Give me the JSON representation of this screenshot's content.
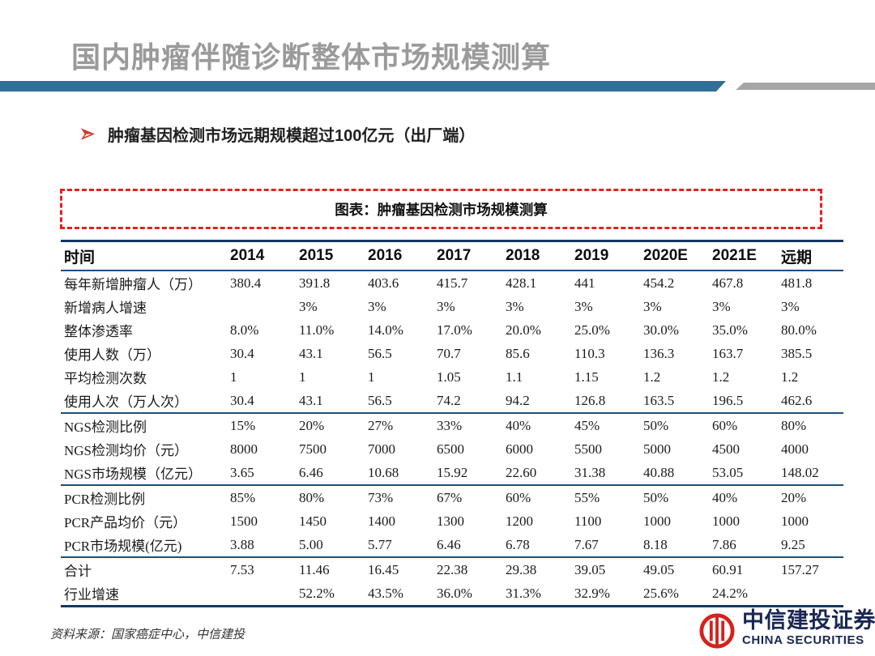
{
  "page": {
    "title": "国内肿瘤伴随诊断整体市场规模测算",
    "bullet": "肿瘤基因检测市场远期规模超过100亿元（出厂端）",
    "source": "资料来源：国家癌症中心，中信建投"
  },
  "logo": {
    "name_cn": "中信建投证券",
    "name_en": "CHINA SECURITIES"
  },
  "colors": {
    "title_gray": "#9a9a9a",
    "bar_blue": "#2f7097",
    "bar_gray": "#a6a6a6",
    "accent_red": "#cf3a28",
    "dash_red": "#e02420",
    "navy": "#17375e",
    "line_blue": "#1f4e79",
    "logo_red": "#d3231c",
    "logo_navy": "#182753"
  },
  "chart_data": {
    "type": "table",
    "title": "图表：肿瘤基因检测市场规模测算",
    "columns": [
      "时间",
      "2014",
      "2015",
      "2016",
      "2017",
      "2018",
      "2019",
      "2020E",
      "2021E",
      "远期"
    ],
    "rows": [
      {
        "label": "每年新增肿瘤人（万）",
        "values": [
          "380.4",
          "391.8",
          "403.6",
          "415.7",
          "428.1",
          "441",
          "454.2",
          "467.8",
          "481.8"
        ],
        "section_end": false
      },
      {
        "label": "新增病人增速",
        "values": [
          "",
          "3%",
          "3%",
          "3%",
          "3%",
          "3%",
          "3%",
          "3%",
          "3%"
        ],
        "section_end": false
      },
      {
        "label": "整体渗透率",
        "values": [
          "8.0%",
          "11.0%",
          "14.0%",
          "17.0%",
          "20.0%",
          "25.0%",
          "30.0%",
          "35.0%",
          "80.0%"
        ],
        "section_end": false
      },
      {
        "label": "使用人数（万）",
        "values": [
          "30.4",
          "43.1",
          "56.5",
          "70.7",
          "85.6",
          "110.3",
          "136.3",
          "163.7",
          "385.5"
        ],
        "section_end": false
      },
      {
        "label": "平均检测次数",
        "values": [
          "1",
          "1",
          "1",
          "1.05",
          "1.1",
          "1.15",
          "1.2",
          "1.2",
          "1.2"
        ],
        "section_end": false
      },
      {
        "label": "使用人次（万人次）",
        "values": [
          "30.4",
          "43.1",
          "56.5",
          "74.2",
          "94.2",
          "126.8",
          "163.5",
          "196.5",
          "462.6"
        ],
        "section_end": true
      },
      {
        "label": "NGS检测比例",
        "values": [
          "15%",
          "20%",
          "27%",
          "33%",
          "40%",
          "45%",
          "50%",
          "60%",
          "80%"
        ],
        "section_end": false
      },
      {
        "label": "NGS检测均价（元）",
        "values": [
          "8000",
          "7500",
          "7000",
          "6500",
          "6000",
          "5500",
          "5000",
          "4500",
          "4000"
        ],
        "section_end": false
      },
      {
        "label": "NGS市场规模（亿元）",
        "values": [
          "3.65",
          "6.46",
          "10.68",
          "15.92",
          "22.60",
          "31.38",
          "40.88",
          "53.05",
          "148.02"
        ],
        "section_end": true
      },
      {
        "label": "PCR检测比例",
        "values": [
          "85%",
          "80%",
          "73%",
          "67%",
          "60%",
          "55%",
          "50%",
          "40%",
          "20%"
        ],
        "section_end": false
      },
      {
        "label": "PCR产品均价（元）",
        "values": [
          "1500",
          "1450",
          "1400",
          "1300",
          "1200",
          "1100",
          "1000",
          "1000",
          "1000"
        ],
        "section_end": false
      },
      {
        "label": "PCR市场规模(亿元)",
        "values": [
          "3.88",
          "5.00",
          "5.77",
          "6.46",
          "6.78",
          "7.67",
          "8.18",
          "7.86",
          "9.25"
        ],
        "section_end": true
      },
      {
        "label": "合计",
        "values": [
          "7.53",
          "11.46",
          "16.45",
          "22.38",
          "29.38",
          "39.05",
          "49.05",
          "60.91",
          "157.27"
        ],
        "section_end": false
      },
      {
        "label": "行业增速",
        "values": [
          "",
          "52.2%",
          "43.5%",
          "36.0%",
          "31.3%",
          "32.9%",
          "25.6%",
          "24.2%",
          ""
        ],
        "section_end": false
      }
    ]
  }
}
